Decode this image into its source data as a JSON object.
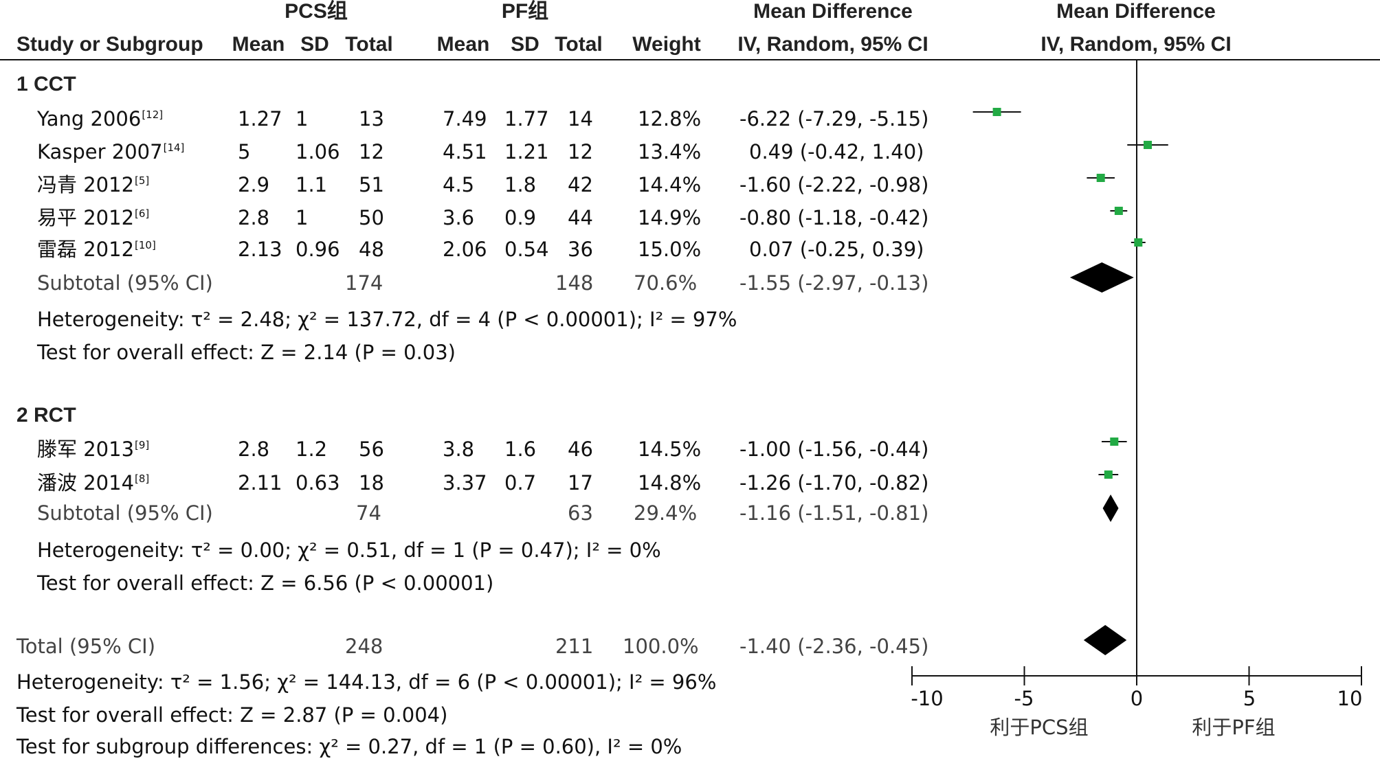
{
  "header": {
    "group1": "PCS组",
    "group2": "PF组",
    "md_title": "Mean Difference",
    "md_method": "IV, Random, 95% CI",
    "cols": {
      "study": "Study or Subgroup",
      "mean1": "Mean",
      "sd1": "SD",
      "total1": "Total",
      "mean2": "Mean",
      "sd2": "SD",
      "total2": "Total",
      "weight": "Weight"
    }
  },
  "subgroups": [
    {
      "title": "1 CCT",
      "studies": [
        {
          "name": "Yang 2006",
          "ref": "[12]",
          "mean1": "1.27",
          "sd1": "1",
          "n1": "13",
          "mean2": "7.49",
          "sd2": "1.77",
          "n2": "14",
          "weight": "12.8%",
          "ci_text": "-6.22 (-7.29, -5.15)"
        },
        {
          "name": "Kasper 2007",
          "ref": "[14]",
          "mean1": "5",
          "sd1": "1.06",
          "n1": "12",
          "mean2": "4.51",
          "sd2": "1.21",
          "n2": "12",
          "weight": "13.4%",
          "ci_text": "0.49 (-0.42, 1.40)"
        },
        {
          "name": "冯青 2012",
          "ref": "[5]",
          "mean1": "2.9",
          "sd1": "1.1",
          "n1": "51",
          "mean2": "4.5",
          "sd2": "1.8",
          "n2": "42",
          "weight": "14.4%",
          "ci_text": "-1.60 (-2.22, -0.98)"
        },
        {
          "name": "易平 2012",
          "ref": "[6]",
          "mean1": "2.8",
          "sd1": "1",
          "n1": "50",
          "mean2": "3.6",
          "sd2": "0.9",
          "n2": "44",
          "weight": "14.9%",
          "ci_text": "-0.80 (-1.18, -0.42)"
        },
        {
          "name": "雷磊 2012",
          "ref": "[10]",
          "mean1": "2.13",
          "sd1": "0.96",
          "n1": "48",
          "mean2": "2.06",
          "sd2": "0.54",
          "n2": "36",
          "weight": "15.0%",
          "ci_text": "0.07 (-0.25, 0.39)"
        }
      ],
      "subtotal": {
        "label": "Subtotal (95% CI)",
        "n1": "174",
        "n2": "148",
        "weight": "70.6%",
        "ci_text": "-1.55 (-2.97, -0.13)"
      },
      "heterogeneity": "Heterogeneity: τ² = 2.48; χ² = 137.72, df = 4 (P < 0.00001); I² = 97%",
      "overall": "Test for overall effect: Z = 2.14 (P = 0.03)"
    },
    {
      "title": "2 RCT",
      "studies": [
        {
          "name": "滕军 2013",
          "ref": "[9]",
          "mean1": "2.8",
          "sd1": "1.2",
          "n1": "56",
          "mean2": "3.8",
          "sd2": "1.6",
          "n2": "46",
          "weight": "14.5%",
          "ci_text": "-1.00 (-1.56, -0.44)"
        },
        {
          "name": "潘波 2014",
          "ref": "[8]",
          "mean1": "2.11",
          "sd1": "0.63",
          "n1": "18",
          "mean2": "3.37",
          "sd2": "0.7",
          "n2": "17",
          "weight": "14.8%",
          "ci_text": "-1.26 (-1.70, -0.82)"
        }
      ],
      "subtotal": {
        "label": "Subtotal (95% CI)",
        "n1": "74",
        "n2": "63",
        "weight": "29.4%",
        "ci_text": "-1.16 (-1.51, -0.81)"
      },
      "heterogeneity": "Heterogeneity: τ² = 0.00; χ² = 0.51, df = 1 (P = 0.47); I² = 0%",
      "overall": "Test for overall effect: Z = 6.56 (P < 0.00001)"
    }
  ],
  "total": {
    "label": "Total (95% CI)",
    "n1": "248",
    "n2": "211",
    "weight": "100.0%",
    "ci_text": "-1.40 (-2.36, -0.45)",
    "heterogeneity": "Heterogeneity: τ² = 1.56; χ² = 144.13, df = 6 (P < 0.00001); I² = 96%",
    "overall": "Test for overall effect: Z = 2.87 (P = 0.004)",
    "subgroup_diff": "Test for subgroup differences: χ² = 0.27, df = 1 (P = 0.60), I² = 0%"
  },
  "axis": {
    "ticks": [
      "-10",
      "-5",
      "0",
      "5",
      "10"
    ],
    "favours_left": "利于PCS组",
    "favours_right": "利于PF组"
  },
  "chart_data": {
    "type": "forest",
    "x_range": [
      -10,
      10
    ],
    "tick_values": [
      -10,
      -5,
      0,
      5,
      10
    ],
    "studies": [
      {
        "name": "Yang 2006",
        "md": -6.22,
        "lo": -7.29,
        "hi": -5.15,
        "weight": 12.8
      },
      {
        "name": "Kasper 2007",
        "md": 0.49,
        "lo": -0.42,
        "hi": 1.4,
        "weight": 13.4
      },
      {
        "name": "冯青 2012",
        "md": -1.6,
        "lo": -2.22,
        "hi": -0.98,
        "weight": 14.4
      },
      {
        "name": "易平 2012",
        "md": -0.8,
        "lo": -1.18,
        "hi": -0.42,
        "weight": 14.9
      },
      {
        "name": "雷磊 2012",
        "md": 0.07,
        "lo": -0.25,
        "hi": 0.39,
        "weight": 15.0
      },
      {
        "name": "滕军 2013",
        "md": -1.0,
        "lo": -1.56,
        "hi": -0.44,
        "weight": 14.5
      },
      {
        "name": "潘波 2014",
        "md": -1.26,
        "lo": -1.7,
        "hi": -0.82,
        "weight": 14.8
      }
    ],
    "pooled": [
      {
        "name": "Subtotal 1 CCT",
        "md": -1.55,
        "lo": -2.97,
        "hi": -0.13
      },
      {
        "name": "Subtotal 2 RCT",
        "md": -1.16,
        "lo": -1.51,
        "hi": -0.81
      },
      {
        "name": "Total",
        "md": -1.4,
        "lo": -2.36,
        "hi": -0.45
      }
    ],
    "colors": {
      "study_marker": "#22aa44",
      "diamond": "#000000"
    }
  }
}
